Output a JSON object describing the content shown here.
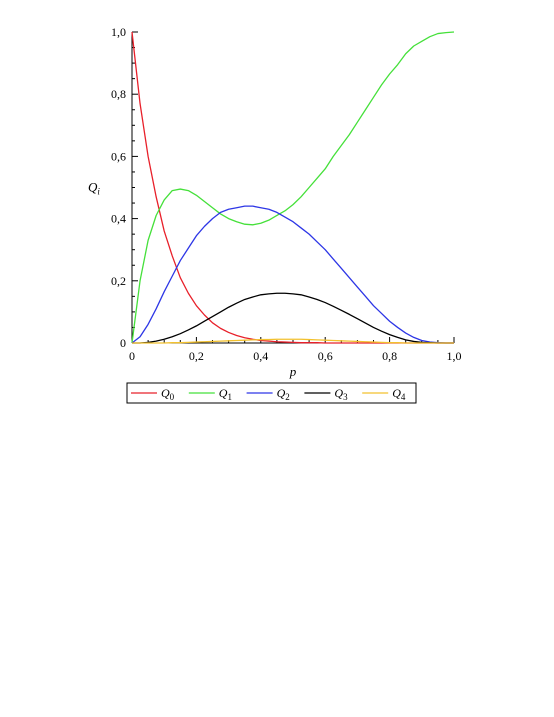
{
  "chart_data": {
    "type": "line",
    "xlabel": "p",
    "ylabel": "Q",
    "ylabel_sub": "i",
    "xlim": [
      0,
      1
    ],
    "ylim": [
      0,
      1
    ],
    "x_ticks": [
      0,
      0.2,
      0.4,
      0.6,
      0.8,
      1.0
    ],
    "x_tick_labels": [
      "0",
      "0,2",
      "0,4",
      "0,6",
      "0,8",
      "1,0"
    ],
    "y_ticks": [
      0,
      0.2,
      0.4,
      0.6,
      0.8,
      1.0
    ],
    "y_tick_labels": [
      "0",
      "0,2",
      "0,4",
      "0,6",
      "0,8",
      "1,0"
    ],
    "grid": false,
    "legend_position": "bottom",
    "x": [
      0,
      0.025,
      0.05,
      0.075,
      0.1,
      0.125,
      0.15,
      0.175,
      0.2,
      0.225,
      0.25,
      0.275,
      0.3,
      0.325,
      0.35,
      0.375,
      0.4,
      0.425,
      0.45,
      0.475,
      0.5,
      0.525,
      0.55,
      0.575,
      0.6,
      0.625,
      0.65,
      0.675,
      0.7,
      0.725,
      0.75,
      0.775,
      0.8,
      0.825,
      0.85,
      0.875,
      0.9,
      0.925,
      0.95,
      0.975,
      1.0
    ],
    "series": [
      {
        "name": "Q",
        "sub": "0",
        "color": "#e8202a",
        "values": [
          1.0,
          0.77,
          0.6,
          0.47,
          0.36,
          0.28,
          0.21,
          0.16,
          0.12,
          0.09,
          0.065,
          0.047,
          0.034,
          0.024,
          0.017,
          0.012,
          0.008,
          0.006,
          0.004,
          0.003,
          0.002,
          0.001,
          0.001,
          0.001,
          0.0,
          0.0,
          0.0,
          0.0,
          0.0,
          0.0,
          0.0,
          0.0,
          0.0,
          0.0,
          0.0,
          0.0,
          0.0,
          0.0,
          0.0,
          0.0,
          0.0
        ]
      },
      {
        "name": "Q",
        "sub": "1",
        "color": "#45e03a",
        "values": [
          0.0,
          0.2,
          0.33,
          0.41,
          0.46,
          0.49,
          0.495,
          0.49,
          0.475,
          0.455,
          0.435,
          0.415,
          0.4,
          0.39,
          0.382,
          0.38,
          0.385,
          0.395,
          0.41,
          0.425,
          0.445,
          0.47,
          0.5,
          0.53,
          0.56,
          0.6,
          0.635,
          0.67,
          0.71,
          0.75,
          0.79,
          0.83,
          0.865,
          0.895,
          0.93,
          0.955,
          0.97,
          0.985,
          0.995,
          0.998,
          1.0
        ]
      },
      {
        "name": "Q",
        "sub": "2",
        "color": "#2d36e6",
        "values": [
          0.0,
          0.02,
          0.06,
          0.11,
          0.165,
          0.215,
          0.265,
          0.305,
          0.345,
          0.375,
          0.4,
          0.42,
          0.43,
          0.435,
          0.44,
          0.44,
          0.435,
          0.43,
          0.42,
          0.405,
          0.39,
          0.37,
          0.35,
          0.325,
          0.3,
          0.27,
          0.24,
          0.21,
          0.18,
          0.15,
          0.12,
          0.095,
          0.07,
          0.05,
          0.032,
          0.018,
          0.008,
          0.003,
          0.001,
          0.0,
          0.0
        ]
      },
      {
        "name": "Q",
        "sub": "3",
        "color": "#000000",
        "values": [
          0.0,
          0.0,
          0.002,
          0.006,
          0.012,
          0.02,
          0.03,
          0.042,
          0.055,
          0.07,
          0.085,
          0.1,
          0.115,
          0.128,
          0.14,
          0.148,
          0.155,
          0.158,
          0.16,
          0.16,
          0.158,
          0.155,
          0.148,
          0.14,
          0.13,
          0.118,
          0.105,
          0.092,
          0.078,
          0.064,
          0.05,
          0.038,
          0.027,
          0.018,
          0.01,
          0.005,
          0.002,
          0.001,
          0.0,
          0.0,
          0.0
        ]
      },
      {
        "name": "Q",
        "sub": "4",
        "color": "#f2c12e",
        "values": [
          0.0,
          0.0,
          0.0,
          0.0,
          0.0,
          0.001,
          0.001,
          0.002,
          0.003,
          0.004,
          0.005,
          0.006,
          0.007,
          0.008,
          0.009,
          0.01,
          0.011,
          0.011,
          0.012,
          0.012,
          0.012,
          0.012,
          0.011,
          0.01,
          0.009,
          0.008,
          0.007,
          0.006,
          0.005,
          0.004,
          0.003,
          0.002,
          0.001,
          0.001,
          0.0,
          0.0,
          0.0,
          0.0,
          0.0,
          0.0,
          0.0
        ]
      }
    ]
  }
}
